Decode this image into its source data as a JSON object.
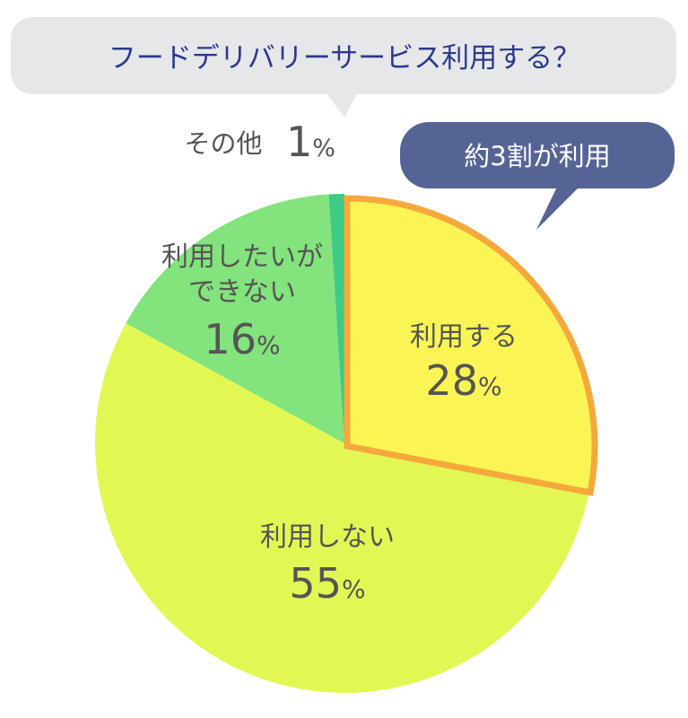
{
  "chart_data": {
    "type": "pie",
    "title": "フードデリバリーサービス利用する？",
    "categories": [
      "利用する",
      "利用しない",
      "利用したいができない",
      "その他"
    ],
    "values": [
      28,
      55,
      16,
      1
    ],
    "unit": "%",
    "colors": [
      "#FAF555",
      "#E3F754",
      "#83E37C",
      "#3DCB86"
    ],
    "highlight": {
      "category": "利用する",
      "outline_color": "#F5A93C"
    },
    "labels": [
      {
        "lines": [
          "利用する"
        ],
        "value": "28"
      },
      {
        "lines": [
          "利用しない"
        ],
        "value": "55"
      },
      {
        "lines": [
          "利用したいが",
          "できない"
        ],
        "value": "16"
      },
      {
        "lines": [
          "その他"
        ],
        "value": "1"
      }
    ],
    "callout": "約3割が利用"
  },
  "colors": {
    "title_bubble": "#E6E7E9",
    "title_text": "#2B3A8C",
    "callout_bubble": "#566495",
    "callout_text": "#FFFFFF",
    "label_text": "#555555"
  }
}
